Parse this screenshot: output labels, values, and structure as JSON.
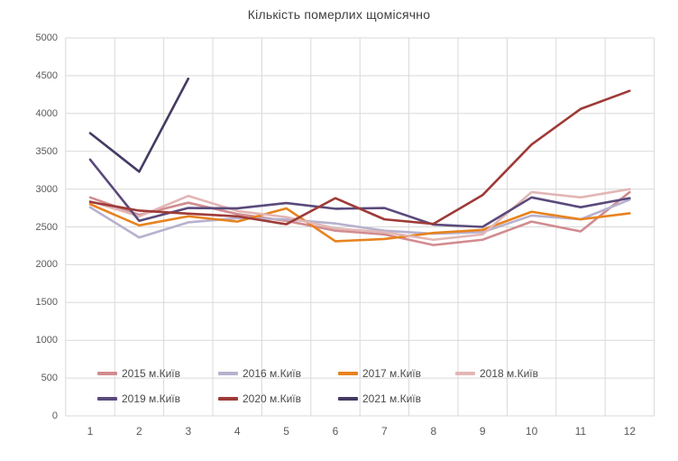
{
  "chart_data": {
    "type": "line",
    "title": "Кількість померлих щомісячно",
    "xlabel": "",
    "ylabel": "",
    "ylim": [
      0,
      5000
    ],
    "yticks": [
      0,
      500,
      1000,
      1500,
      2000,
      2500,
      3000,
      3500,
      4000,
      4500,
      5000
    ],
    "xticks": [
      "1",
      "2",
      "3",
      "4",
      "5",
      "6",
      "7",
      "8",
      "9",
      "10",
      "11",
      "12"
    ],
    "grid": "horizontal-and-vertical",
    "grid_color": "#d9d9d9",
    "axis_label_color": "#595959",
    "legend_position": "bottom-inside-two-rows",
    "x": [
      1,
      2,
      3,
      4,
      5,
      6,
      7,
      8,
      9,
      10,
      11,
      12
    ],
    "series": [
      {
        "name": "2015 м.Київ",
        "color": "#d18c90",
        "values": [
          2890,
          2660,
          2820,
          2670,
          2580,
          2450,
          2400,
          2260,
          2330,
          2570,
          2440,
          2960
        ]
      },
      {
        "name": "2016 м.Київ",
        "color": "#b7b1ce",
        "values": [
          2760,
          2360,
          2560,
          2615,
          2600,
          2545,
          2450,
          2410,
          2430,
          2650,
          2600,
          2860
        ]
      },
      {
        "name": "2017 м.Київ",
        "color": "#e8821e",
        "values": [
          2800,
          2520,
          2640,
          2570,
          2745,
          2310,
          2340,
          2420,
          2460,
          2700,
          2600,
          2680
        ]
      },
      {
        "name": "2018 м.Київ",
        "color": "#e2b6b5",
        "values": [
          2840,
          2640,
          2910,
          2710,
          2630,
          2480,
          2430,
          2330,
          2400,
          2960,
          2890,
          3000
        ]
      },
      {
        "name": "2019 м.Київ",
        "color": "#5a4a7b",
        "values": [
          3390,
          2580,
          2750,
          2745,
          2815,
          2740,
          2750,
          2530,
          2500,
          2890,
          2760,
          2880
        ]
      },
      {
        "name": "2020 м.Київ",
        "color": "#9e3b38",
        "values": [
          2830,
          2715,
          2675,
          2640,
          2535,
          2880,
          2600,
          2540,
          2920,
          3590,
          4060,
          4300
        ]
      },
      {
        "name": "2021 м.Київ",
        "color": "#453a62",
        "values": [
          3740,
          3230,
          4460,
          null,
          null,
          null,
          null,
          null,
          null,
          null,
          null,
          null
        ]
      }
    ],
    "legend_rows": [
      [
        0,
        1,
        2,
        3
      ],
      [
        4,
        5,
        6
      ]
    ]
  }
}
